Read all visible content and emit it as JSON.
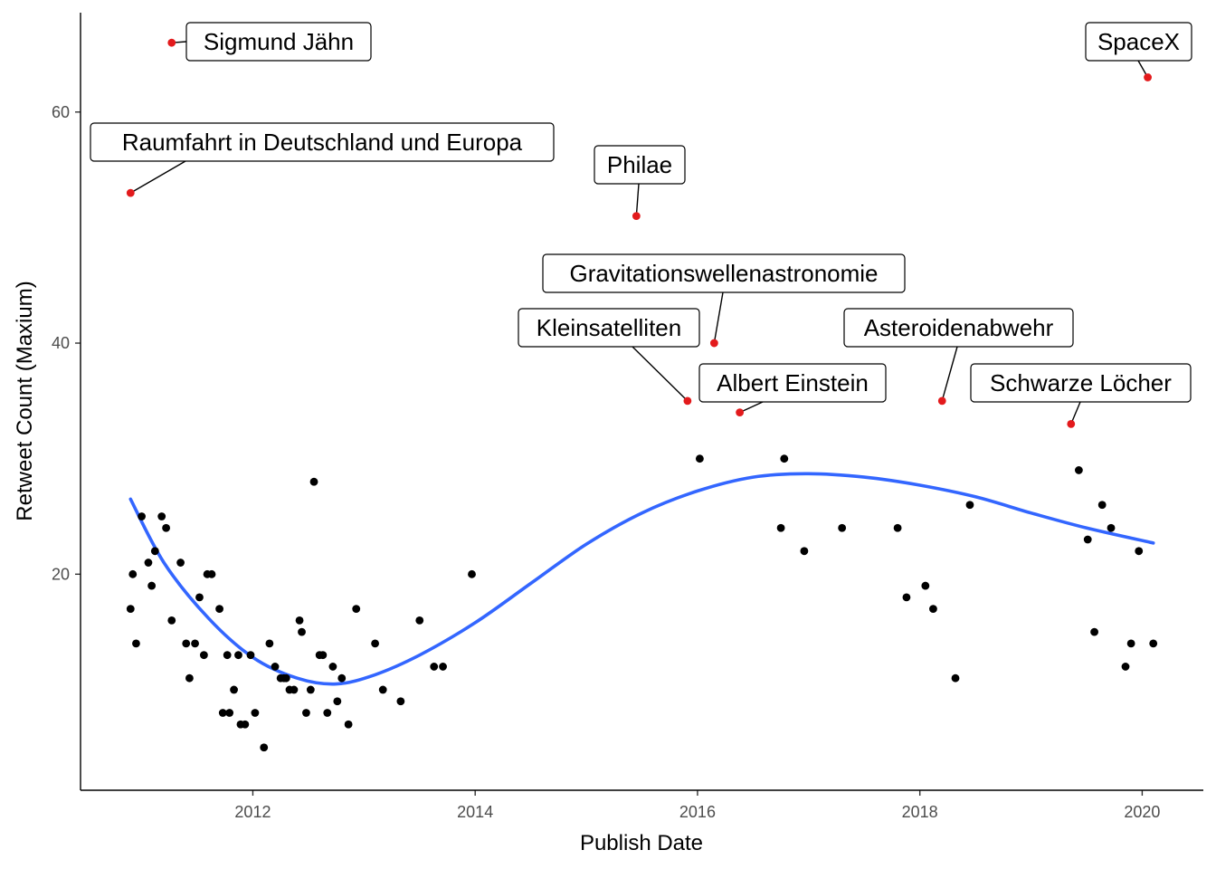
{
  "chart_data": {
    "type": "scatter",
    "title": "",
    "xlabel": "Publish Date",
    "ylabel": "Retweet Count (Maxium)",
    "xlim": [
      2010.45,
      2020.55
    ],
    "ylim": [
      1.3,
      68.6
    ],
    "x_ticks": [
      2012,
      2014,
      2016,
      2018,
      2020
    ],
    "x_tick_labels": [
      "2012",
      "2014",
      "2016",
      "2018",
      "2020"
    ],
    "y_ticks": [
      20,
      40,
      60
    ],
    "y_tick_labels": [
      "20",
      "40",
      "60"
    ],
    "grid": false,
    "legend": "none",
    "colors": {
      "points": "#000000",
      "highlight": "#e31a1c",
      "smooth": "#3366ff"
    },
    "points": [
      [
        2010.9,
        17
      ],
      [
        2010.92,
        20
      ],
      [
        2010.95,
        14
      ],
      [
        2011.0,
        25
      ],
      [
        2011.06,
        21
      ],
      [
        2011.09,
        19
      ],
      [
        2011.12,
        22
      ],
      [
        2011.18,
        25
      ],
      [
        2011.22,
        24
      ],
      [
        2011.27,
        16
      ],
      [
        2011.35,
        21
      ],
      [
        2011.4,
        14
      ],
      [
        2011.43,
        11
      ],
      [
        2011.48,
        14
      ],
      [
        2011.52,
        18
      ],
      [
        2011.56,
        13
      ],
      [
        2011.59,
        20
      ],
      [
        2011.63,
        20
      ],
      [
        2011.7,
        17
      ],
      [
        2011.73,
        8
      ],
      [
        2011.77,
        13
      ],
      [
        2011.79,
        8
      ],
      [
        2011.83,
        10
      ],
      [
        2011.87,
        13
      ],
      [
        2011.89,
        7
      ],
      [
        2011.93,
        7
      ],
      [
        2011.98,
        13
      ],
      [
        2012.02,
        8
      ],
      [
        2012.1,
        5
      ],
      [
        2012.15,
        14
      ],
      [
        2012.2,
        12
      ],
      [
        2012.25,
        11
      ],
      [
        2012.28,
        11
      ],
      [
        2012.3,
        11
      ],
      [
        2012.33,
        10
      ],
      [
        2012.37,
        10
      ],
      [
        2012.42,
        16
      ],
      [
        2012.44,
        15
      ],
      [
        2012.48,
        8
      ],
      [
        2012.52,
        10
      ],
      [
        2012.55,
        28
      ],
      [
        2012.6,
        13
      ],
      [
        2012.63,
        13
      ],
      [
        2012.67,
        8
      ],
      [
        2012.72,
        12
      ],
      [
        2012.76,
        9
      ],
      [
        2012.8,
        11
      ],
      [
        2012.86,
        7
      ],
      [
        2012.93,
        17
      ],
      [
        2013.1,
        14
      ],
      [
        2013.17,
        10
      ],
      [
        2013.33,
        9
      ],
      [
        2013.5,
        16
      ],
      [
        2013.63,
        12
      ],
      [
        2013.71,
        12
      ],
      [
        2013.97,
        20
      ],
      [
        2016.02,
        30
      ],
      [
        2016.75,
        24
      ],
      [
        2016.78,
        30
      ],
      [
        2016.96,
        22
      ],
      [
        2017.3,
        24
      ],
      [
        2017.8,
        24
      ],
      [
        2017.88,
        18
      ],
      [
        2018.05,
        19
      ],
      [
        2018.12,
        17
      ],
      [
        2018.32,
        11
      ],
      [
        2018.45,
        26
      ],
      [
        2019.43,
        29
      ],
      [
        2019.51,
        23
      ],
      [
        2019.57,
        15
      ],
      [
        2019.64,
        26
      ],
      [
        2019.72,
        24
      ],
      [
        2019.85,
        12
      ],
      [
        2019.9,
        14
      ],
      [
        2019.97,
        22
      ],
      [
        2020.1,
        14
      ]
    ],
    "annotations": [
      {
        "x": 2010.9,
        "y": 53,
        "label": "Raumfahrt in Deutschland und Europa"
      },
      {
        "x": 2011.27,
        "y": 66,
        "label": "Sigmund Jähn"
      },
      {
        "x": 2015.45,
        "y": 51,
        "label": "Philae"
      },
      {
        "x": 2015.91,
        "y": 35,
        "label": "Kleinsatelliten"
      },
      {
        "x": 2016.15,
        "y": 40,
        "label": "Gravitationswellenastronomie"
      },
      {
        "x": 2016.38,
        "y": 34,
        "label": "Albert Einstein"
      },
      {
        "x": 2018.2,
        "y": 35,
        "label": "Asteroidenabwehr"
      },
      {
        "x": 2019.36,
        "y": 33,
        "label": "Schwarze Löcher"
      },
      {
        "x": 2020.05,
        "y": 63,
        "label": "SpaceX"
      }
    ],
    "smooth": [
      [
        2010.9,
        26.5
      ],
      [
        2011.2,
        21.0
      ],
      [
        2011.6,
        16.2
      ],
      [
        2012.0,
        12.8
      ],
      [
        2012.4,
        11.0
      ],
      [
        2012.75,
        10.5
      ],
      [
        2013.1,
        11.3
      ],
      [
        2013.5,
        13.0
      ],
      [
        2014.0,
        15.8
      ],
      [
        2014.5,
        19.2
      ],
      [
        2015.0,
        22.6
      ],
      [
        2015.5,
        25.3
      ],
      [
        2016.0,
        27.2
      ],
      [
        2016.5,
        28.4
      ],
      [
        2017.0,
        28.7
      ],
      [
        2017.5,
        28.4
      ],
      [
        2018.0,
        27.7
      ],
      [
        2018.5,
        26.7
      ],
      [
        2019.0,
        25.3
      ],
      [
        2019.5,
        24.0
      ],
      [
        2020.1,
        22.7
      ]
    ]
  }
}
